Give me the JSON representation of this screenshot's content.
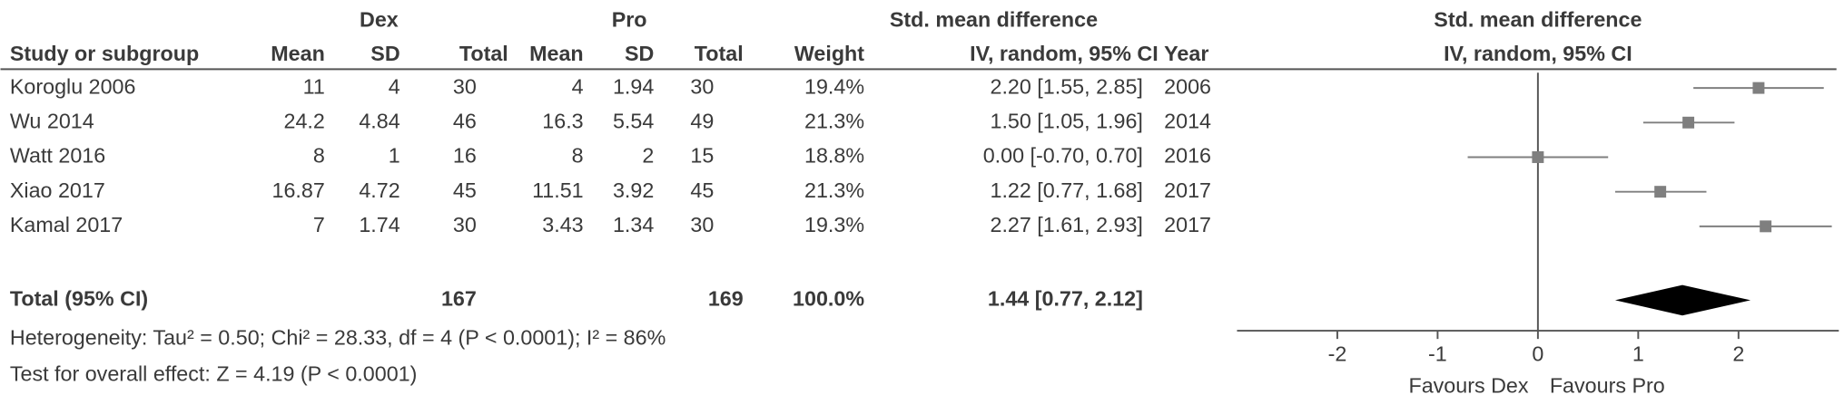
{
  "chart_data": {
    "type": "forest",
    "headers": {
      "group1": "Dex",
      "group2": "Pro",
      "effect": "Std. mean difference",
      "plot_title": "Std. mean difference",
      "study": "Study or subgroup",
      "mean1": "Mean",
      "sd1": "SD",
      "total1": "Total",
      "mean2": "Mean",
      "sd2": "SD",
      "total2": "Total",
      "weight": "Weight",
      "ci": "IV, random, 95% CI",
      "year": "Year",
      "plot_subtitle": "IV, random, 95% CI"
    },
    "rows": [
      {
        "study": "Koroglu 2006",
        "dex": [
          11,
          4,
          30
        ],
        "pro": [
          4,
          1.94,
          30
        ],
        "weight": "19.4%",
        "ci": "2.20 [1.55, 2.85]",
        "year": 2006
      },
      {
        "study": "Wu 2014",
        "dex": [
          24.2,
          4.84,
          46
        ],
        "pro": [
          16.3,
          5.54,
          49
        ],
        "weight": "21.3%",
        "ci": "1.50 [1.05, 1.96]",
        "year": 2014
      },
      {
        "study": "Watt 2016",
        "dex": [
          8,
          1,
          16
        ],
        "pro": [
          8,
          2,
          15
        ],
        "weight": "18.8%",
        "ci": "0.00 [-0.70, 0.70]",
        "year": 2016
      },
      {
        "study": "Xiao 2017",
        "dex": [
          16.87,
          4.72,
          45
        ],
        "pro": [
          11.51,
          3.92,
          45
        ],
        "weight": "21.3%",
        "ci": "1.22 [0.77, 1.68]",
        "year": 2017
      },
      {
        "study": "Kamal 2017",
        "dex": [
          7,
          1.74,
          30
        ],
        "pro": [
          3.43,
          1.34,
          30
        ],
        "weight": "19.3%",
        "ci": "2.27 [1.61, 2.93]",
        "year": 2017
      }
    ],
    "estimates": [
      2.2,
      1.5,
      0,
      1.22,
      2.27
    ],
    "lower": [
      1.55,
      1.05,
      -0.7,
      0.77,
      1.61
    ],
    "upper": [
      2.85,
      1.96,
      0.7,
      1.68,
      2.93
    ],
    "marker_color": "#7f7f7f",
    "total": {
      "label": "Total (95% CI)",
      "dex_total": 167,
      "pro_total": 169,
      "weight": "100.0%",
      "ci": "1.44 [0.77, 2.12]",
      "estimate": 1.44,
      "lower": 0.77,
      "upper": 2.12,
      "color": "#000000"
    },
    "heterogeneity": "Heterogeneity: Tau² = 0.50; Chi² = 28.33, df = 4 (P < 0.0001); I² = 86%",
    "overall": "Test for overall effect: Z = 4.19 (P < 0.0001)",
    "xlim": [
      -3,
      3
    ],
    "xticks": [
      -2,
      -1,
      0,
      1,
      2
    ],
    "xlabel_left": "Favours Dex",
    "xlabel_right": "Favours Pro"
  }
}
